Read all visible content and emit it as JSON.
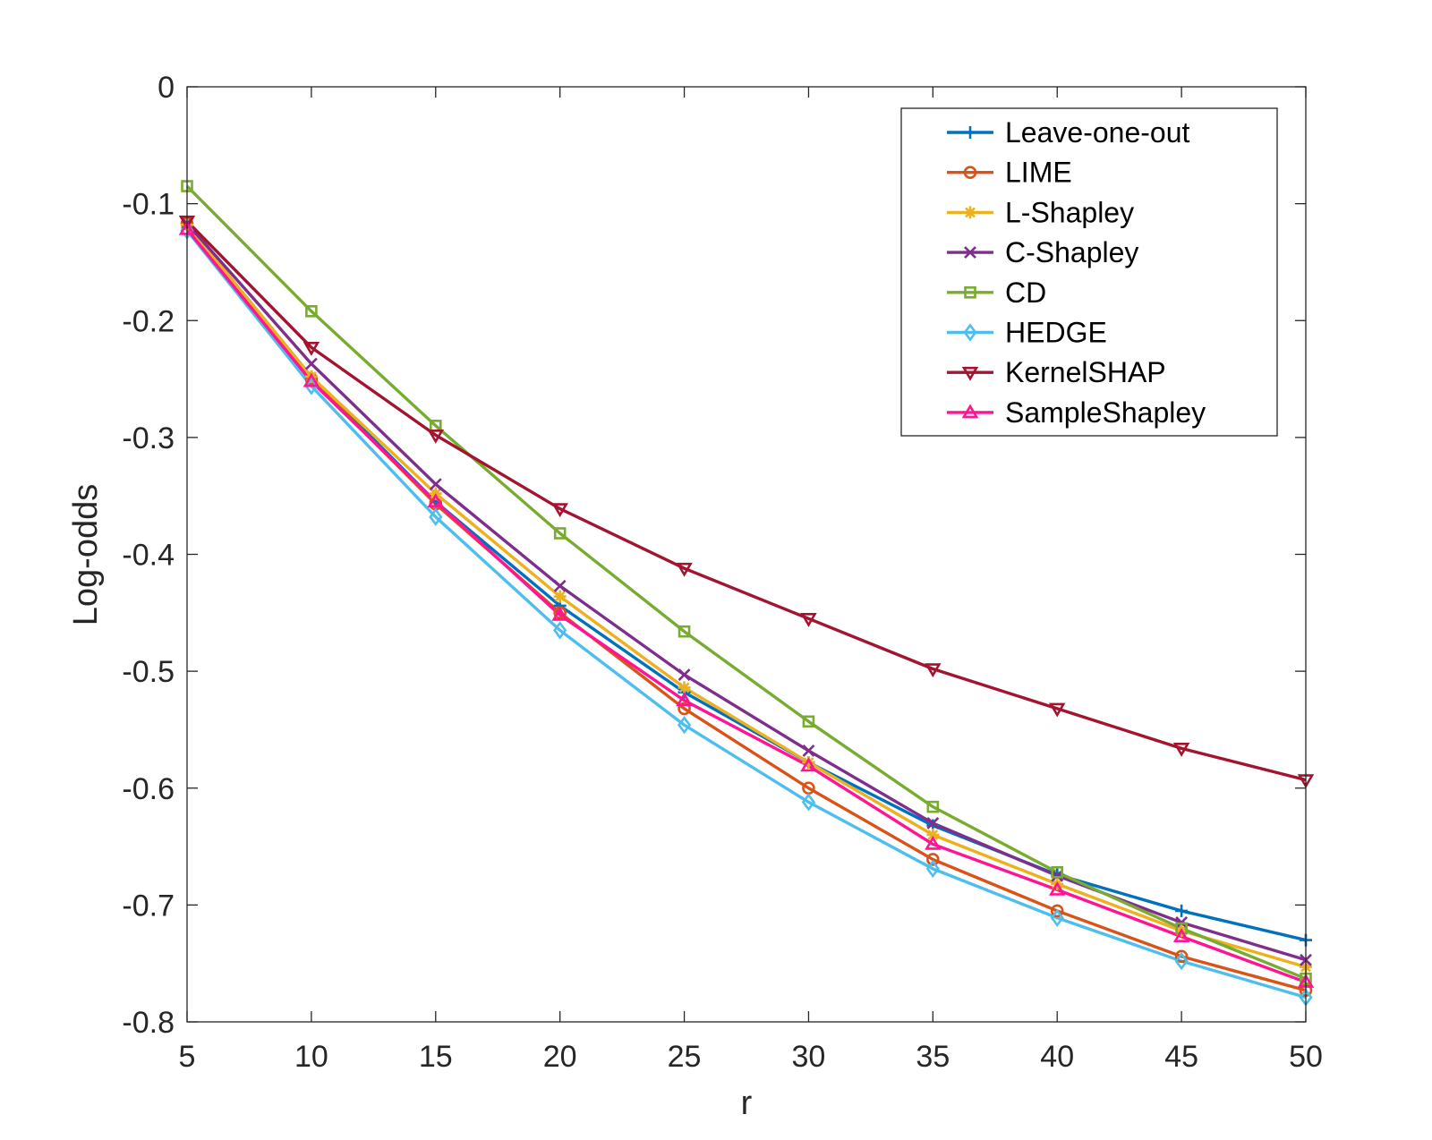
{
  "chart_data": {
    "type": "line",
    "title": "",
    "xlabel": "r",
    "ylabel": "Log-odds",
    "xlim": [
      5,
      50
    ],
    "ylim": [
      -0.8,
      0
    ],
    "x": [
      5,
      10,
      15,
      20,
      25,
      30,
      35,
      40,
      45,
      50
    ],
    "xticks": [
      5,
      10,
      15,
      20,
      25,
      30,
      35,
      40,
      45,
      50
    ],
    "xtick_labels": [
      "5",
      "10",
      "15",
      "20",
      "25",
      "30",
      "35",
      "40",
      "45",
      "50"
    ],
    "yticks": [
      0,
      -0.1,
      -0.2,
      -0.3,
      -0.4,
      -0.5,
      -0.6,
      -0.7,
      -0.8
    ],
    "ytick_labels": [
      "0",
      "-0.1",
      "-0.2",
      "-0.3",
      "-0.4",
      "-0.5",
      "-0.6",
      "-0.7",
      "-0.8"
    ],
    "grid": false,
    "legend_position": "top-right",
    "series": [
      {
        "name": "Leave-one-out",
        "color": "#0072BD",
        "marker": "plus",
        "values": [
          -0.118,
          -0.248,
          -0.355,
          -0.444,
          -0.518,
          -0.578,
          -0.632,
          -0.674,
          -0.705,
          -0.73
        ]
      },
      {
        "name": "LIME",
        "color": "#D95319",
        "marker": "circle",
        "values": [
          -0.117,
          -0.25,
          -0.357,
          -0.45,
          -0.532,
          -0.6,
          -0.661,
          -0.705,
          -0.744,
          -0.773
        ]
      },
      {
        "name": "L-Shapley",
        "color": "#EDB120",
        "marker": "asterisk",
        "values": [
          -0.118,
          -0.248,
          -0.348,
          -0.436,
          -0.514,
          -0.578,
          -0.64,
          -0.682,
          -0.722,
          -0.753
        ]
      },
      {
        "name": "C-Shapley",
        "color": "#7E2F8E",
        "marker": "x",
        "values": [
          -0.117,
          -0.237,
          -0.34,
          -0.427,
          -0.503,
          -0.568,
          -0.63,
          -0.675,
          -0.715,
          -0.747
        ]
      },
      {
        "name": "CD",
        "color": "#77AC30",
        "marker": "square",
        "values": [
          -0.085,
          -0.192,
          -0.29,
          -0.382,
          -0.466,
          -0.543,
          -0.616,
          -0.672,
          -0.72,
          -0.763
        ]
      },
      {
        "name": "HEDGE",
        "color": "#4DBEEE",
        "marker": "diamond",
        "values": [
          -0.123,
          -0.256,
          -0.368,
          -0.465,
          -0.546,
          -0.612,
          -0.669,
          -0.711,
          -0.748,
          -0.779
        ]
      },
      {
        "name": "KernelSHAP",
        "color": "#A2142F",
        "marker": "triangle-down",
        "values": [
          -0.115,
          -0.223,
          -0.298,
          -0.361,
          -0.412,
          -0.455,
          -0.498,
          -0.532,
          -0.566,
          -0.593
        ]
      },
      {
        "name": "SampleShapley",
        "color": "#FF1493",
        "marker": "triangle-up",
        "values": [
          -0.122,
          -0.252,
          -0.355,
          -0.452,
          -0.525,
          -0.581,
          -0.648,
          -0.687,
          -0.727,
          -0.766
        ]
      }
    ]
  }
}
